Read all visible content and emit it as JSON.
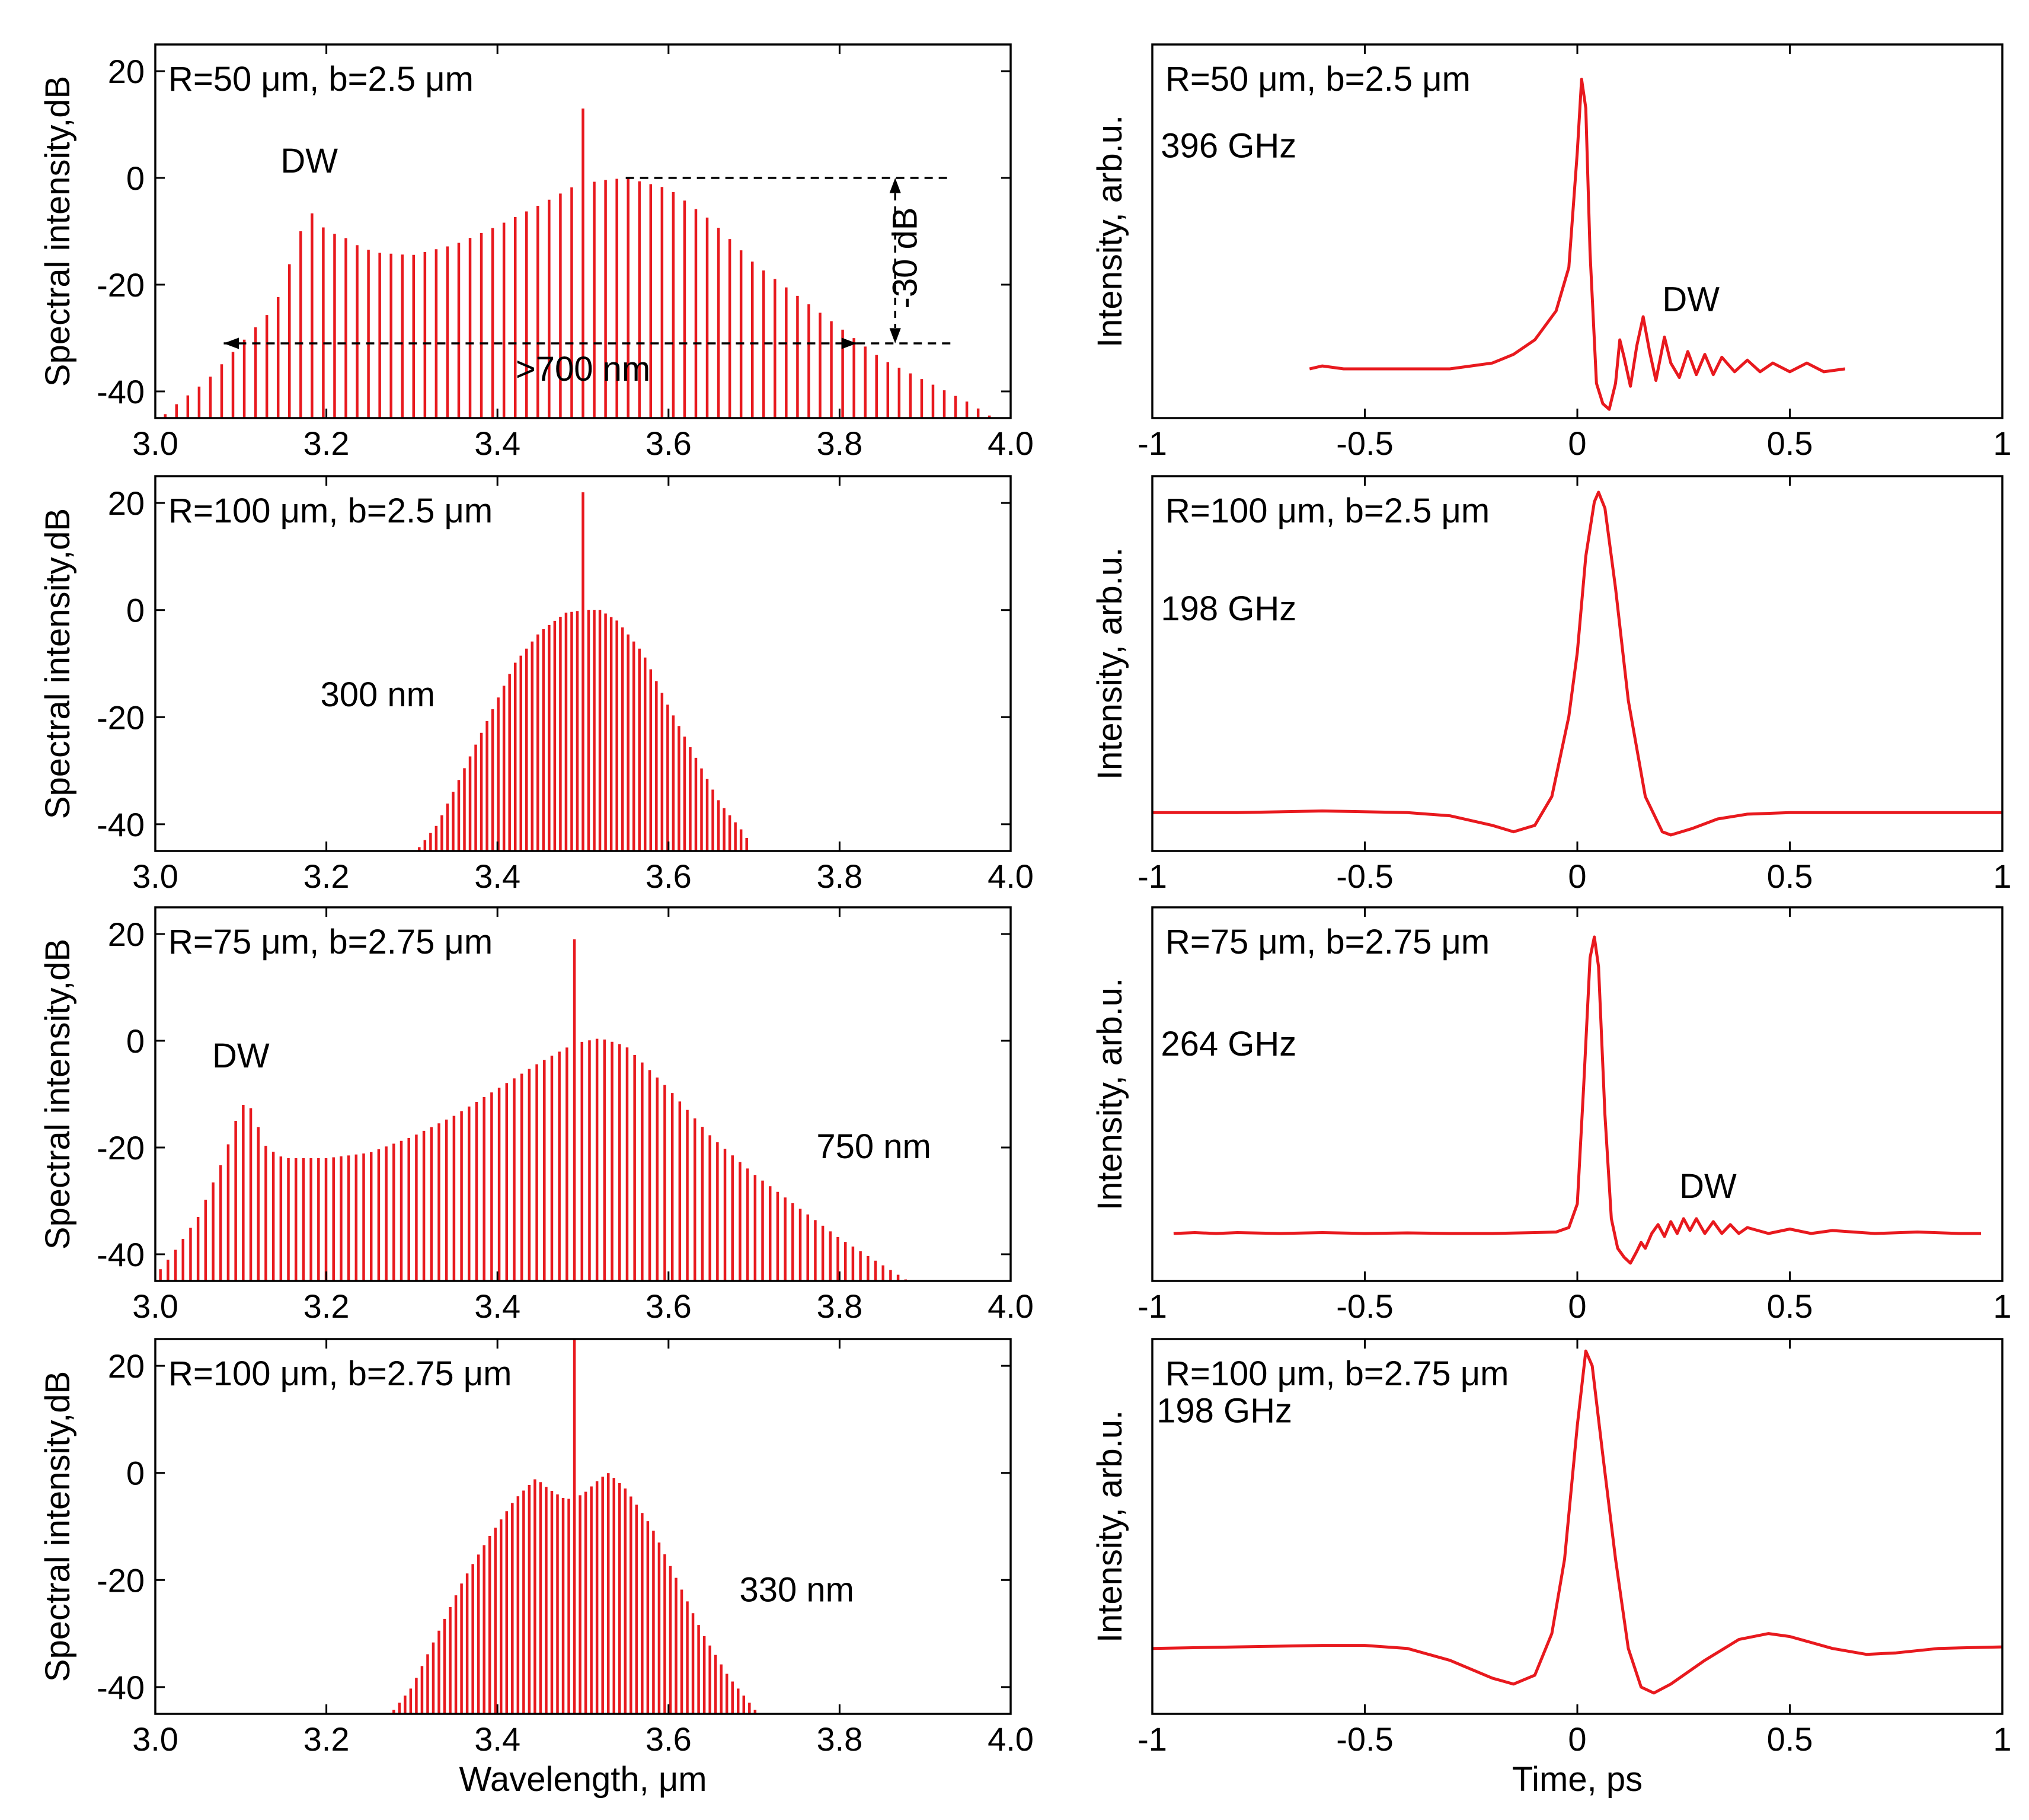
{
  "figure": {
    "color_series": "#e8191e",
    "color_axis": "#000000",
    "left_xlabel": "Wavelength, μm",
    "right_xlabel": "Time, ps"
  },
  "chart_data": [
    {
      "id": "spec1",
      "type": "bar",
      "title": "R=50 μm, b=2.5 μm",
      "xlabel": "",
      "ylabel": "Spectral intensity,dB",
      "xlim": [
        3.0,
        4.0
      ],
      "ylim": [
        -45,
        25
      ],
      "xticks": [
        3.0,
        3.2,
        3.4,
        3.6,
        3.8,
        4.0
      ],
      "xtick_labels": [
        "3.0",
        "3.2",
        "3.4",
        "3.6",
        "3.8",
        "4.0"
      ],
      "yticks": [
        20,
        0,
        -20,
        -40
      ],
      "ytick_labels": [
        "20",
        "0",
        "-20",
        "-40"
      ],
      "bar_spacing": 0.0132,
      "pump": {
        "x": 3.5,
        "y": 13
      },
      "envelope": [
        [
          3.0,
          -46
        ],
        [
          3.02,
          -43
        ],
        [
          3.06,
          -38
        ],
        [
          3.1,
          -31
        ],
        [
          3.14,
          -24
        ],
        [
          3.17,
          -10
        ],
        [
          3.18,
          -6
        ],
        [
          3.2,
          -10
        ],
        [
          3.22,
          -11
        ],
        [
          3.24,
          -13
        ],
        [
          3.26,
          -14
        ],
        [
          3.3,
          -14.5
        ],
        [
          3.35,
          -12.5
        ],
        [
          3.4,
          -9
        ],
        [
          3.45,
          -5
        ],
        [
          3.49,
          -1.5
        ],
        [
          3.52,
          -0.5
        ],
        [
          3.55,
          0
        ],
        [
          3.6,
          -2
        ],
        [
          3.65,
          -8
        ],
        [
          3.7,
          -16
        ],
        [
          3.75,
          -22
        ],
        [
          3.8,
          -28
        ],
        [
          3.85,
          -34
        ],
        [
          3.9,
          -38
        ],
        [
          3.95,
          -42
        ],
        [
          3.98,
          -45
        ]
      ],
      "annotations": [
        {
          "text": "DW",
          "x": 3.18,
          "y": 1
        },
        {
          "text": ">700 nm",
          "x": 3.5,
          "y": -38
        },
        {
          "text": "-30 dB",
          "x": 3.89,
          "y": -15,
          "rotate": true
        }
      ],
      "span_arrow": {
        "x1": 3.08,
        "x2": 3.82,
        "y": -31
      },
      "ref_lines": {
        "top_y": 0,
        "bottom_y": -31,
        "x1": 3.55,
        "x2": 3.93,
        "arrow_x": 3.865
      }
    },
    {
      "id": "spec2",
      "type": "bar",
      "title": "R=100 μm, b=2.5 μm",
      "xlabel": "",
      "ylabel": "Spectral intensity,dB",
      "xlim": [
        3.0,
        4.0
      ],
      "ylim": [
        -45,
        25
      ],
      "xticks": [
        3.0,
        3.2,
        3.4,
        3.6,
        3.8,
        4.0
      ],
      "xtick_labels": [
        "3.0",
        "3.2",
        "3.4",
        "3.6",
        "3.8",
        "4.0"
      ],
      "yticks": [
        20,
        0,
        -20,
        -40
      ],
      "ytick_labels": [
        "20",
        "0",
        "-20",
        "-40"
      ],
      "bar_spacing": 0.0066,
      "pump": {
        "x": 3.5,
        "y": 22
      },
      "envelope": [
        [
          3.3,
          -46
        ],
        [
          3.33,
          -40
        ],
        [
          3.36,
          -30
        ],
        [
          3.39,
          -20
        ],
        [
          3.42,
          -10
        ],
        [
          3.45,
          -4
        ],
        [
          3.48,
          -0.5
        ],
        [
          3.5,
          0
        ],
        [
          3.52,
          0
        ],
        [
          3.54,
          -2
        ],
        [
          3.57,
          -8
        ],
        [
          3.6,
          -18
        ],
        [
          3.63,
          -27
        ],
        [
          3.66,
          -36
        ],
        [
          3.69,
          -42
        ],
        [
          3.7,
          -46
        ]
      ],
      "annotations": [
        {
          "text": "300 nm",
          "x": 3.26,
          "y": -18
        }
      ]
    },
    {
      "id": "spec3",
      "type": "bar",
      "title": "R=75 μm, b=2.75 μm",
      "xlabel": "",
      "ylabel": "Spectral intensity,dB",
      "xlim": [
        3.0,
        4.0
      ],
      "ylim": [
        -45,
        25
      ],
      "xticks": [
        3.0,
        3.2,
        3.4,
        3.6,
        3.8,
        4.0
      ],
      "xtick_labels": [
        "3.0",
        "3.2",
        "3.4",
        "3.6",
        "3.8",
        "4.0"
      ],
      "yticks": [
        20,
        0,
        -20,
        -40
      ],
      "ytick_labels": [
        "20",
        "0",
        "-20",
        "-40"
      ],
      "bar_spacing": 0.0088,
      "pump": {
        "x": 3.49,
        "y": 19
      },
      "envelope": [
        [
          3.0,
          -44
        ],
        [
          3.02,
          -40
        ],
        [
          3.05,
          -33
        ],
        [
          3.08,
          -22
        ],
        [
          3.1,
          -12
        ],
        [
          3.11,
          -12
        ],
        [
          3.13,
          -20
        ],
        [
          3.15,
          -22
        ],
        [
          3.2,
          -22
        ],
        [
          3.25,
          -21
        ],
        [
          3.3,
          -18
        ],
        [
          3.35,
          -14
        ],
        [
          3.4,
          -9
        ],
        [
          3.45,
          -4
        ],
        [
          3.49,
          -0.5
        ],
        [
          3.52,
          0.5
        ],
        [
          3.55,
          -1
        ],
        [
          3.6,
          -9
        ],
        [
          3.65,
          -18
        ],
        [
          3.7,
          -25
        ],
        [
          3.75,
          -31
        ],
        [
          3.8,
          -37
        ],
        [
          3.85,
          -42
        ],
        [
          3.88,
          -45
        ],
        [
          3.91,
          -46
        ]
      ],
      "annotations": [
        {
          "text": "DW",
          "x": 3.1,
          "y": -5
        },
        {
          "text": "750 nm",
          "x": 3.84,
          "y": -22
        }
      ]
    },
    {
      "id": "spec4",
      "type": "bar",
      "title": "R=100 μm, b=2.75 μm",
      "xlabel": "Wavelength, μm",
      "ylabel": "Spectral intensity,dB",
      "xlim": [
        3.0,
        4.0
      ],
      "ylim": [
        -45,
        25
      ],
      "xticks": [
        3.0,
        3.2,
        3.4,
        3.6,
        3.8,
        4.0
      ],
      "xtick_labels": [
        "3.0",
        "3.2",
        "3.4",
        "3.6",
        "3.8",
        "4.0"
      ],
      "yticks": [
        20,
        0,
        -20,
        -40
      ],
      "ytick_labels": [
        "20",
        "0",
        "-20",
        "-40"
      ],
      "bar_spacing": 0.0066,
      "pump": {
        "x": 3.49,
        "y": 25
      },
      "envelope": [
        [
          3.27,
          -46
        ],
        [
          3.3,
          -40
        ],
        [
          3.33,
          -30
        ],
        [
          3.36,
          -20
        ],
        [
          3.39,
          -12
        ],
        [
          3.42,
          -5
        ],
        [
          3.445,
          -1
        ],
        [
          3.46,
          -3
        ],
        [
          3.48,
          -5
        ],
        [
          3.5,
          -4
        ],
        [
          3.52,
          -1
        ],
        [
          3.53,
          0
        ],
        [
          3.55,
          -3
        ],
        [
          3.58,
          -10
        ],
        [
          3.61,
          -20
        ],
        [
          3.64,
          -30
        ],
        [
          3.67,
          -38
        ],
        [
          3.7,
          -44
        ],
        [
          3.71,
          -46
        ]
      ],
      "annotations": [
        {
          "text": "330 nm",
          "x": 3.75,
          "y": -24
        }
      ]
    },
    {
      "id": "time1",
      "type": "line",
      "title": "R=50 μm, b=2.5 μm",
      "xlabel": "",
      "ylabel": "Intensity, arb.u.",
      "xlim": [
        -1,
        1
      ],
      "ylim": [
        -0.17,
        1.12
      ],
      "xticks": [
        -1,
        -0.5,
        0,
        0.5,
        1
      ],
      "xtick_labels": [
        "-1",
        "-0.5",
        "0",
        "0.5",
        "1"
      ],
      "yticks": [],
      "ytick_labels": [],
      "annotations": [
        {
          "text": "396 GHz",
          "x": -0.98,
          "y": 0.73
        },
        {
          "text": "DW",
          "x": 0.2,
          "y": 0.2
        }
      ],
      "samples": [
        [
          -0.63,
          0.0
        ],
        [
          -0.6,
          0.01
        ],
        [
          -0.55,
          0.0
        ],
        [
          -0.5,
          0.0
        ],
        [
          -0.45,
          0.0
        ],
        [
          -0.4,
          0.0
        ],
        [
          -0.35,
          0.0
        ],
        [
          -0.3,
          0.0
        ],
        [
          -0.25,
          0.01
        ],
        [
          -0.2,
          0.02
        ],
        [
          -0.15,
          0.05
        ],
        [
          -0.1,
          0.1
        ],
        [
          -0.05,
          0.2
        ],
        [
          -0.02,
          0.35
        ],
        [
          0.0,
          0.75
        ],
        [
          0.01,
          1.0
        ],
        [
          0.02,
          0.9
        ],
        [
          0.03,
          0.4
        ],
        [
          0.045,
          -0.05
        ],
        [
          0.06,
          -0.12
        ],
        [
          0.075,
          -0.14
        ],
        [
          0.09,
          -0.05
        ],
        [
          0.1,
          0.1
        ],
        [
          0.11,
          0.04
        ],
        [
          0.125,
          -0.06
        ],
        [
          0.14,
          0.08
        ],
        [
          0.155,
          0.18
        ],
        [
          0.17,
          0.06
        ],
        [
          0.185,
          -0.04
        ],
        [
          0.205,
          0.11
        ],
        [
          0.22,
          0.02
        ],
        [
          0.24,
          -0.03
        ],
        [
          0.26,
          0.06
        ],
        [
          0.28,
          -0.02
        ],
        [
          0.3,
          0.05
        ],
        [
          0.32,
          -0.02
        ],
        [
          0.34,
          0.04
        ],
        [
          0.37,
          -0.01
        ],
        [
          0.4,
          0.03
        ],
        [
          0.43,
          -0.01
        ],
        [
          0.46,
          0.02
        ],
        [
          0.5,
          -0.01
        ],
        [
          0.54,
          0.02
        ],
        [
          0.58,
          -0.01
        ],
        [
          0.63,
          0.0
        ]
      ]
    },
    {
      "id": "time2",
      "type": "line",
      "title": "R=100 μm, b=2.5 μm",
      "xlabel": "",
      "ylabel": "Intensity, arb.u.",
      "xlim": [
        -1,
        1
      ],
      "ylim": [
        -0.12,
        1.05
      ],
      "xticks": [
        -1,
        -0.5,
        0,
        0.5,
        1
      ],
      "xtick_labels": [
        "-1",
        "-0.5",
        "0",
        "0.5",
        "1"
      ],
      "yticks": [],
      "ytick_labels": [],
      "annotations": [
        {
          "text": "198 GHz",
          "x": -0.98,
          "y": 0.6
        }
      ],
      "samples": [
        [
          -1.0,
          0.0
        ],
        [
          -0.8,
          0.0
        ],
        [
          -0.6,
          0.005
        ],
        [
          -0.4,
          0.0
        ],
        [
          -0.3,
          -0.01
        ],
        [
          -0.2,
          -0.04
        ],
        [
          -0.15,
          -0.06
        ],
        [
          -0.1,
          -0.04
        ],
        [
          -0.06,
          0.05
        ],
        [
          -0.02,
          0.3
        ],
        [
          0.0,
          0.5
        ],
        [
          0.02,
          0.8
        ],
        [
          0.04,
          0.97
        ],
        [
          0.05,
          1.0
        ],
        [
          0.065,
          0.95
        ],
        [
          0.09,
          0.7
        ],
        [
          0.12,
          0.35
        ],
        [
          0.16,
          0.05
        ],
        [
          0.2,
          -0.06
        ],
        [
          0.22,
          -0.07
        ],
        [
          0.27,
          -0.05
        ],
        [
          0.33,
          -0.02
        ],
        [
          0.4,
          -0.005
        ],
        [
          0.5,
          0.0
        ],
        [
          0.7,
          0.0
        ],
        [
          1.0,
          0.0
        ]
      ]
    },
    {
      "id": "time3",
      "type": "line",
      "title": "R=75 μm, b=2.75 μm",
      "xlabel": "",
      "ylabel": "Intensity, arb.u.",
      "xlim": [
        -1,
        1
      ],
      "ylim": [
        -0.16,
        1.1
      ],
      "xticks": [
        -1,
        -0.5,
        0,
        0.5,
        1
      ],
      "xtick_labels": [
        "-1",
        "-0.5",
        "0",
        "0.5",
        "1"
      ],
      "yticks": [],
      "ytick_labels": [],
      "annotations": [
        {
          "text": "264 GHz",
          "x": -0.98,
          "y": 0.6
        },
        {
          "text": "DW",
          "x": 0.24,
          "y": 0.12
        }
      ],
      "samples": [
        [
          -0.95,
          0.0
        ],
        [
          -0.9,
          0.003
        ],
        [
          -0.85,
          0.0
        ],
        [
          -0.8,
          0.003
        ],
        [
          -0.7,
          0.0
        ],
        [
          -0.6,
          0.003
        ],
        [
          -0.5,
          0.0
        ],
        [
          -0.4,
          0.002
        ],
        [
          -0.3,
          0.0
        ],
        [
          -0.2,
          0.0
        ],
        [
          -0.1,
          0.003
        ],
        [
          -0.05,
          0.005
        ],
        [
          -0.02,
          0.02
        ],
        [
          0.0,
          0.1
        ],
        [
          0.015,
          0.5
        ],
        [
          0.03,
          0.93
        ],
        [
          0.04,
          1.0
        ],
        [
          0.05,
          0.9
        ],
        [
          0.065,
          0.4
        ],
        [
          0.08,
          0.05
        ],
        [
          0.095,
          -0.05
        ],
        [
          0.11,
          -0.08
        ],
        [
          0.125,
          -0.1
        ],
        [
          0.14,
          -0.06
        ],
        [
          0.15,
          -0.03
        ],
        [
          0.16,
          -0.05
        ],
        [
          0.175,
          0.0
        ],
        [
          0.19,
          0.03
        ],
        [
          0.205,
          -0.01
        ],
        [
          0.22,
          0.04
        ],
        [
          0.235,
          0.0
        ],
        [
          0.25,
          0.05
        ],
        [
          0.265,
          0.01
        ],
        [
          0.28,
          0.05
        ],
        [
          0.3,
          0.0
        ],
        [
          0.32,
          0.04
        ],
        [
          0.34,
          0.0
        ],
        [
          0.36,
          0.03
        ],
        [
          0.38,
          0.0
        ],
        [
          0.4,
          0.02
        ],
        [
          0.45,
          0.0
        ],
        [
          0.5,
          0.015
        ],
        [
          0.55,
          0.0
        ],
        [
          0.6,
          0.01
        ],
        [
          0.7,
          0.0
        ],
        [
          0.8,
          0.005
        ],
        [
          0.9,
          0.0
        ],
        [
          0.95,
          0.0
        ]
      ]
    },
    {
      "id": "time4",
      "type": "line",
      "title": "R=100 μm, b=2.75 μm",
      "xlabel": "Time, ps",
      "ylabel": "Intensity, arb.u.",
      "xlim": [
        -1,
        1
      ],
      "ylim": [
        -0.22,
        1.04
      ],
      "xticks": [
        -1,
        -0.5,
        0,
        0.5,
        1
      ],
      "xtick_labels": [
        "-1",
        "-0.5",
        "0",
        "0.5",
        "1"
      ],
      "yticks": [],
      "ytick_labels": [],
      "annotations": [
        {
          "text": "198 GHz",
          "x": -0.99,
          "y": 0.76
        }
      ],
      "samples": [
        [
          -1.0,
          0.0
        ],
        [
          -0.8,
          0.005
        ],
        [
          -0.6,
          0.01
        ],
        [
          -0.5,
          0.01
        ],
        [
          -0.4,
          0.0
        ],
        [
          -0.3,
          -0.04
        ],
        [
          -0.2,
          -0.1
        ],
        [
          -0.15,
          -0.12
        ],
        [
          -0.1,
          -0.09
        ],
        [
          -0.06,
          0.05
        ],
        [
          -0.03,
          0.3
        ],
        [
          0.0,
          0.75
        ],
        [
          0.02,
          1.0
        ],
        [
          0.035,
          0.95
        ],
        [
          0.06,
          0.65
        ],
        [
          0.09,
          0.3
        ],
        [
          0.12,
          0.0
        ],
        [
          0.15,
          -0.13
        ],
        [
          0.18,
          -0.15
        ],
        [
          0.22,
          -0.12
        ],
        [
          0.3,
          -0.04
        ],
        [
          0.38,
          0.03
        ],
        [
          0.45,
          0.05
        ],
        [
          0.5,
          0.04
        ],
        [
          0.6,
          0.0
        ],
        [
          0.68,
          -0.02
        ],
        [
          0.75,
          -0.015
        ],
        [
          0.85,
          0.0
        ],
        [
          1.0,
          0.005
        ]
      ]
    }
  ]
}
